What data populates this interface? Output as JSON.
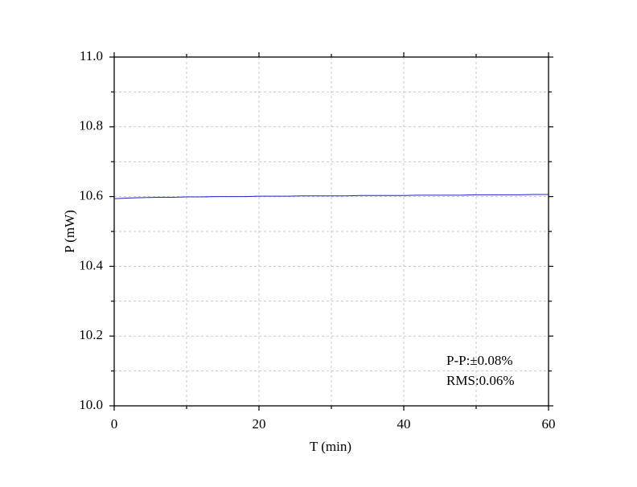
{
  "chart_data": {
    "type": "line",
    "xlabel": "T (min)",
    "ylabel": "P (mW)",
    "x": [
      0,
      2,
      4,
      6,
      8,
      10,
      12,
      14,
      16,
      18,
      20,
      22,
      24,
      26,
      28,
      30,
      32,
      34,
      36,
      38,
      40,
      42,
      44,
      46,
      48,
      50,
      52,
      54,
      56,
      58,
      60
    ],
    "series": [
      {
        "name": "P",
        "color": "#2020d0",
        "values": [
          10.594,
          10.596,
          10.597,
          10.598,
          10.598,
          10.599,
          10.599,
          10.6,
          10.6,
          10.6,
          10.601,
          10.601,
          10.601,
          10.602,
          10.602,
          10.602,
          10.602,
          10.603,
          10.603,
          10.603,
          10.603,
          10.604,
          10.604,
          10.604,
          10.604,
          10.605,
          10.605,
          10.605,
          10.605,
          10.606,
          10.606
        ]
      }
    ],
    "xlim": [
      0,
      60
    ],
    "xticks": [
      0,
      20,
      40,
      60
    ],
    "xminorticks": [
      10,
      30,
      50
    ],
    "ylim": [
      10.0,
      11.0
    ],
    "yticks": [
      {
        "value": 10.0,
        "label": "10.0"
      },
      {
        "value": 10.2,
        "label": "10.2"
      },
      {
        "value": 10.4,
        "label": "10.4"
      },
      {
        "value": 10.6,
        "label": "10.6"
      },
      {
        "value": 10.8,
        "label": "10.8"
      },
      {
        "value": 11.0,
        "label": "11.0"
      }
    ],
    "yminorticks": [
      10.1,
      10.3,
      10.5,
      10.7,
      10.9
    ],
    "grid": true,
    "annotations": [
      "P-P:±0.08%",
      "RMS:0.06%"
    ]
  }
}
